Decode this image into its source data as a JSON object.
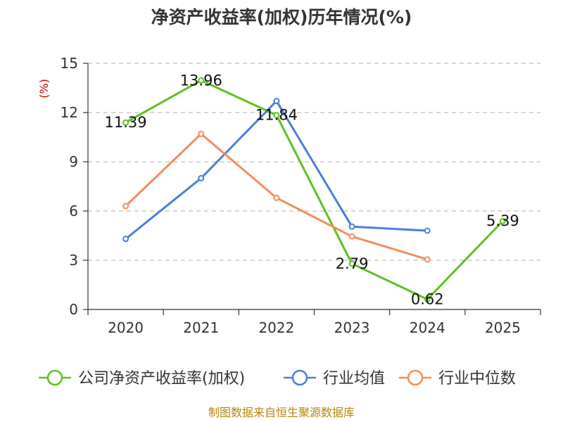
{
  "title": "净资产收益率(加权)历年情况(%)",
  "source": "制图数据来自恒生聚源数据库",
  "chart_data": {
    "type": "line",
    "title": "净资产收益率(加权)历年情况(%)",
    "ylabel": "(%)",
    "xlabel": "",
    "ylim": [
      0,
      15
    ],
    "yticks": [
      "0",
      "3",
      "6",
      "9",
      "12",
      "15"
    ],
    "categories": [
      "2020",
      "2021",
      "2022",
      "2023",
      "2024",
      "2025"
    ],
    "grid": true,
    "legend_position": "bottom",
    "series": [
      {
        "name": "公司净资产收益率(加权)",
        "color": "#5ec121",
        "values": [
          11.39,
          13.96,
          11.84,
          2.79,
          0.62,
          5.39
        ],
        "labels": [
          "11.39",
          "13.96",
          "11.84",
          "2.79",
          "0.62",
          "5.39"
        ]
      },
      {
        "name": "行业均值",
        "color": "#4a7fdc",
        "values": [
          4.3,
          8.0,
          12.7,
          5.05,
          4.8,
          null
        ]
      },
      {
        "name": "行业中位数",
        "color": "#f58b5c",
        "values": [
          6.3,
          10.7,
          6.8,
          4.45,
          3.05,
          null
        ]
      }
    ]
  }
}
